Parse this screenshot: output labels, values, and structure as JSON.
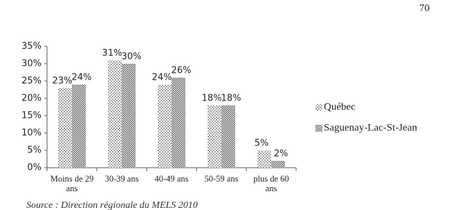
{
  "page_number": "70",
  "source": "Source : Direction régionale du MELS 2010",
  "chart_data": {
    "type": "bar",
    "categories": [
      "Moins de 29 ans",
      "30-39 ans",
      "40-49 ans",
      "50-59 ans",
      "plus de 60 ans"
    ],
    "series": [
      {
        "name": "Québec",
        "color": "#333333",
        "pattern": "dots",
        "values": [
          23,
          31,
          24,
          18,
          5
        ],
        "value_labels": [
          "23%",
          "31%",
          "24%",
          "18%",
          "5%"
        ]
      },
      {
        "name": "Saguenay-Lac-St-Jean",
        "color": "#333333",
        "pattern": "hatch",
        "values": [
          24,
          30,
          26,
          18,
          2
        ],
        "value_labels": [
          "24%",
          "30%",
          "26%",
          "18%",
          "2%"
        ]
      }
    ],
    "ylim": [
      0,
      35
    ],
    "yticks": [
      {
        "value": 0,
        "label": "0%"
      },
      {
        "value": 5,
        "label": "5%"
      },
      {
        "value": 10,
        "label": "10%"
      },
      {
        "value": 15,
        "label": "15%"
      },
      {
        "value": 20,
        "label": "20%"
      },
      {
        "value": 25,
        "label": "25%"
      },
      {
        "value": 30,
        "label": "30%"
      },
      {
        "value": 35,
        "label": "35%"
      }
    ],
    "legend": "right"
  }
}
